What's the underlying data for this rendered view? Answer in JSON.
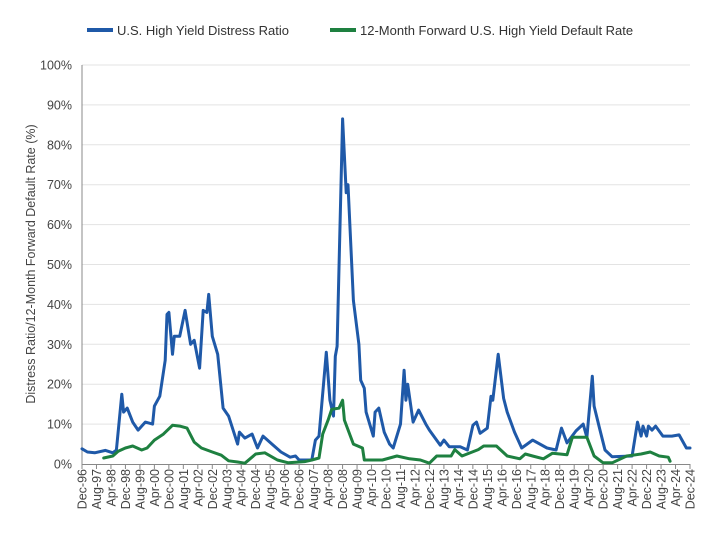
{
  "chart_data": {
    "type": "line",
    "title": "",
    "xlabel": "",
    "ylabel": "Distress Ratio/12-Month Forward Default Rate (%)",
    "ylim": [
      0,
      100
    ],
    "yticks": [
      "0%",
      "10%",
      "20%",
      "30%",
      "40%",
      "50%",
      "60%",
      "70%",
      "80%",
      "90%",
      "100%"
    ],
    "x_unit": "months since Dec-96",
    "xlim": [
      0,
      336
    ],
    "grid": true,
    "legend_position": "top",
    "xtick_labels": [
      "Dec-96",
      "Aug-97",
      "Apr-98",
      "Dec-98",
      "Aug-99",
      "Apr-00",
      "Dec-00",
      "Aug-01",
      "Apr-02",
      "Dec-02",
      "Aug-03",
      "Apr-04",
      "Dec-04",
      "Aug-05",
      "Apr-06",
      "Dec-06",
      "Aug-07",
      "Apr-08",
      "Dec-08",
      "Aug-09",
      "Apr-10",
      "Dec-10",
      "Aug-11",
      "Apr-12",
      "Dec-12",
      "Aug-13",
      "Apr-14",
      "Dec-14",
      "Aug-15",
      "Apr-16",
      "Dec-16",
      "Aug-17",
      "Apr-18",
      "Dec-18",
      "Aug-19",
      "Apr-20",
      "Dec-20",
      "Aug-21",
      "Apr-22",
      "Dec-22",
      "Aug-23",
      "Apr-24",
      "Dec-24"
    ],
    "series": [
      {
        "name": "U.S. High Yield Distress Ratio",
        "color": "#1f59a8",
        "points": [
          [
            0,
            3.8
          ],
          [
            3,
            3
          ],
          [
            7,
            2.8
          ],
          [
            13,
            3.4
          ],
          [
            17,
            2.8
          ],
          [
            19,
            3.5
          ],
          [
            22,
            17.5
          ],
          [
            23,
            13
          ],
          [
            25,
            14
          ],
          [
            28,
            10.5
          ],
          [
            31,
            8.5
          ],
          [
            35,
            10.5
          ],
          [
            39,
            10
          ],
          [
            40,
            14.5
          ],
          [
            43,
            17
          ],
          [
            46,
            26
          ],
          [
            47,
            37.5
          ],
          [
            48,
            38
          ],
          [
            50,
            27.5
          ],
          [
            51,
            32
          ],
          [
            54,
            32
          ],
          [
            57,
            38.5
          ],
          [
            60,
            30
          ],
          [
            62,
            31
          ],
          [
            65,
            24
          ],
          [
            67,
            38.5
          ],
          [
            69,
            38
          ],
          [
            70,
            42.5
          ],
          [
            72,
            32
          ],
          [
            75,
            27.5
          ],
          [
            78,
            14
          ],
          [
            81,
            12
          ],
          [
            86,
            5
          ],
          [
            87,
            8
          ],
          [
            90,
            6.5
          ],
          [
            94,
            7.5
          ],
          [
            97,
            4
          ],
          [
            100,
            7
          ],
          [
            105,
            5
          ],
          [
            110,
            3
          ],
          [
            115,
            1.7
          ],
          [
            118,
            2
          ],
          [
            120,
            1
          ],
          [
            127,
            1
          ],
          [
            129,
            6
          ],
          [
            131,
            7
          ],
          [
            135,
            28
          ],
          [
            137,
            16
          ],
          [
            139,
            12
          ],
          [
            140,
            27
          ],
          [
            141,
            29.5
          ],
          [
            144,
            86.5
          ],
          [
            146,
            68
          ],
          [
            147,
            70
          ],
          [
            150,
            41
          ],
          [
            153,
            30
          ],
          [
            154,
            21
          ],
          [
            156,
            19
          ],
          [
            157,
            13
          ],
          [
            161,
            7
          ],
          [
            162,
            13
          ],
          [
            164,
            14
          ],
          [
            167,
            8
          ],
          [
            170,
            5
          ],
          [
            172,
            4
          ],
          [
            176,
            10
          ],
          [
            178,
            23.5
          ],
          [
            179,
            16
          ],
          [
            180,
            20
          ],
          [
            183,
            10.5
          ],
          [
            186,
            13.5
          ],
          [
            190,
            10
          ],
          [
            192,
            8.5
          ],
          [
            198,
            4.7
          ],
          [
            200,
            6
          ],
          [
            203,
            4.3
          ],
          [
            209,
            4.3
          ],
          [
            213,
            3.5
          ],
          [
            216,
            9.7
          ],
          [
            218,
            10.5
          ],
          [
            220,
            7.7
          ],
          [
            224,
            9
          ],
          [
            226,
            17
          ],
          [
            227,
            16
          ],
          [
            230,
            27.5
          ],
          [
            233,
            16.5
          ],
          [
            235,
            13
          ],
          [
            239,
            8
          ],
          [
            243,
            4
          ],
          [
            246,
            5
          ],
          [
            249,
            6
          ],
          [
            257,
            4
          ],
          [
            262,
            3.5
          ],
          [
            265,
            9
          ],
          [
            268,
            5.3
          ],
          [
            273,
            8.3
          ],
          [
            277,
            10
          ],
          [
            279,
            6.7
          ],
          [
            282,
            22
          ],
          [
            283,
            14.5
          ],
          [
            286,
            9
          ],
          [
            289,
            3.5
          ],
          [
            293,
            1.8
          ],
          [
            304,
            2
          ],
          [
            307,
            10.5
          ],
          [
            309,
            7
          ],
          [
            310,
            9.5
          ],
          [
            312,
            7
          ],
          [
            313,
            9.5
          ],
          [
            315,
            8.5
          ],
          [
            317,
            9.5
          ],
          [
            321,
            7
          ],
          [
            326,
            7
          ],
          [
            330,
            7.3
          ],
          [
            334,
            4
          ],
          [
            336,
            4
          ]
        ]
      },
      {
        "name": "12-Month Forward U.S. High Yield Default Rate",
        "color": "#1e8040",
        "points": [
          [
            12,
            1.5
          ],
          [
            17,
            2
          ],
          [
            20,
            3.2
          ],
          [
            24,
            4
          ],
          [
            28,
            4.5
          ],
          [
            33,
            3.5
          ],
          [
            36,
            4
          ],
          [
            40,
            6
          ],
          [
            45,
            7.5
          ],
          [
            50,
            9.7
          ],
          [
            54,
            9.5
          ],
          [
            58,
            9
          ],
          [
            62,
            5.5
          ],
          [
            66,
            4
          ],
          [
            72,
            3
          ],
          [
            77,
            2.2
          ],
          [
            81,
            0.8
          ],
          [
            86,
            0.5
          ],
          [
            90,
            0.2
          ],
          [
            96,
            2.5
          ],
          [
            101,
            2.8
          ],
          [
            108,
            1
          ],
          [
            114,
            0.3
          ],
          [
            123,
            0.6
          ],
          [
            127,
            1
          ],
          [
            131,
            1.5
          ],
          [
            133,
            7.5
          ],
          [
            136,
            11
          ],
          [
            138,
            13.7
          ],
          [
            142,
            14
          ],
          [
            144,
            16
          ],
          [
            145,
            11
          ],
          [
            150,
            5
          ],
          [
            155,
            4
          ],
          [
            156,
            1
          ],
          [
            166,
            1
          ],
          [
            174,
            2
          ],
          [
            181,
            1.3
          ],
          [
            187,
            1
          ],
          [
            192,
            0.2
          ],
          [
            196,
            2
          ],
          [
            204,
            2
          ],
          [
            206,
            3.6
          ],
          [
            210,
            2
          ],
          [
            219,
            3.6
          ],
          [
            222,
            4.5
          ],
          [
            229,
            4.5
          ],
          [
            235,
            2
          ],
          [
            242,
            1.3
          ],
          [
            245,
            2.5
          ],
          [
            249,
            2
          ],
          [
            255,
            1.3
          ],
          [
            260,
            2.7
          ],
          [
            268,
            2.3
          ],
          [
            271,
            6.7
          ],
          [
            279,
            6.7
          ],
          [
            283,
            2
          ],
          [
            288,
            0.3
          ],
          [
            293,
            0.3
          ],
          [
            301,
            2
          ],
          [
            309,
            2.5
          ],
          [
            314,
            3
          ],
          [
            319,
            2
          ],
          [
            324,
            1.7
          ],
          [
            325,
            0.7
          ]
        ]
      }
    ]
  }
}
